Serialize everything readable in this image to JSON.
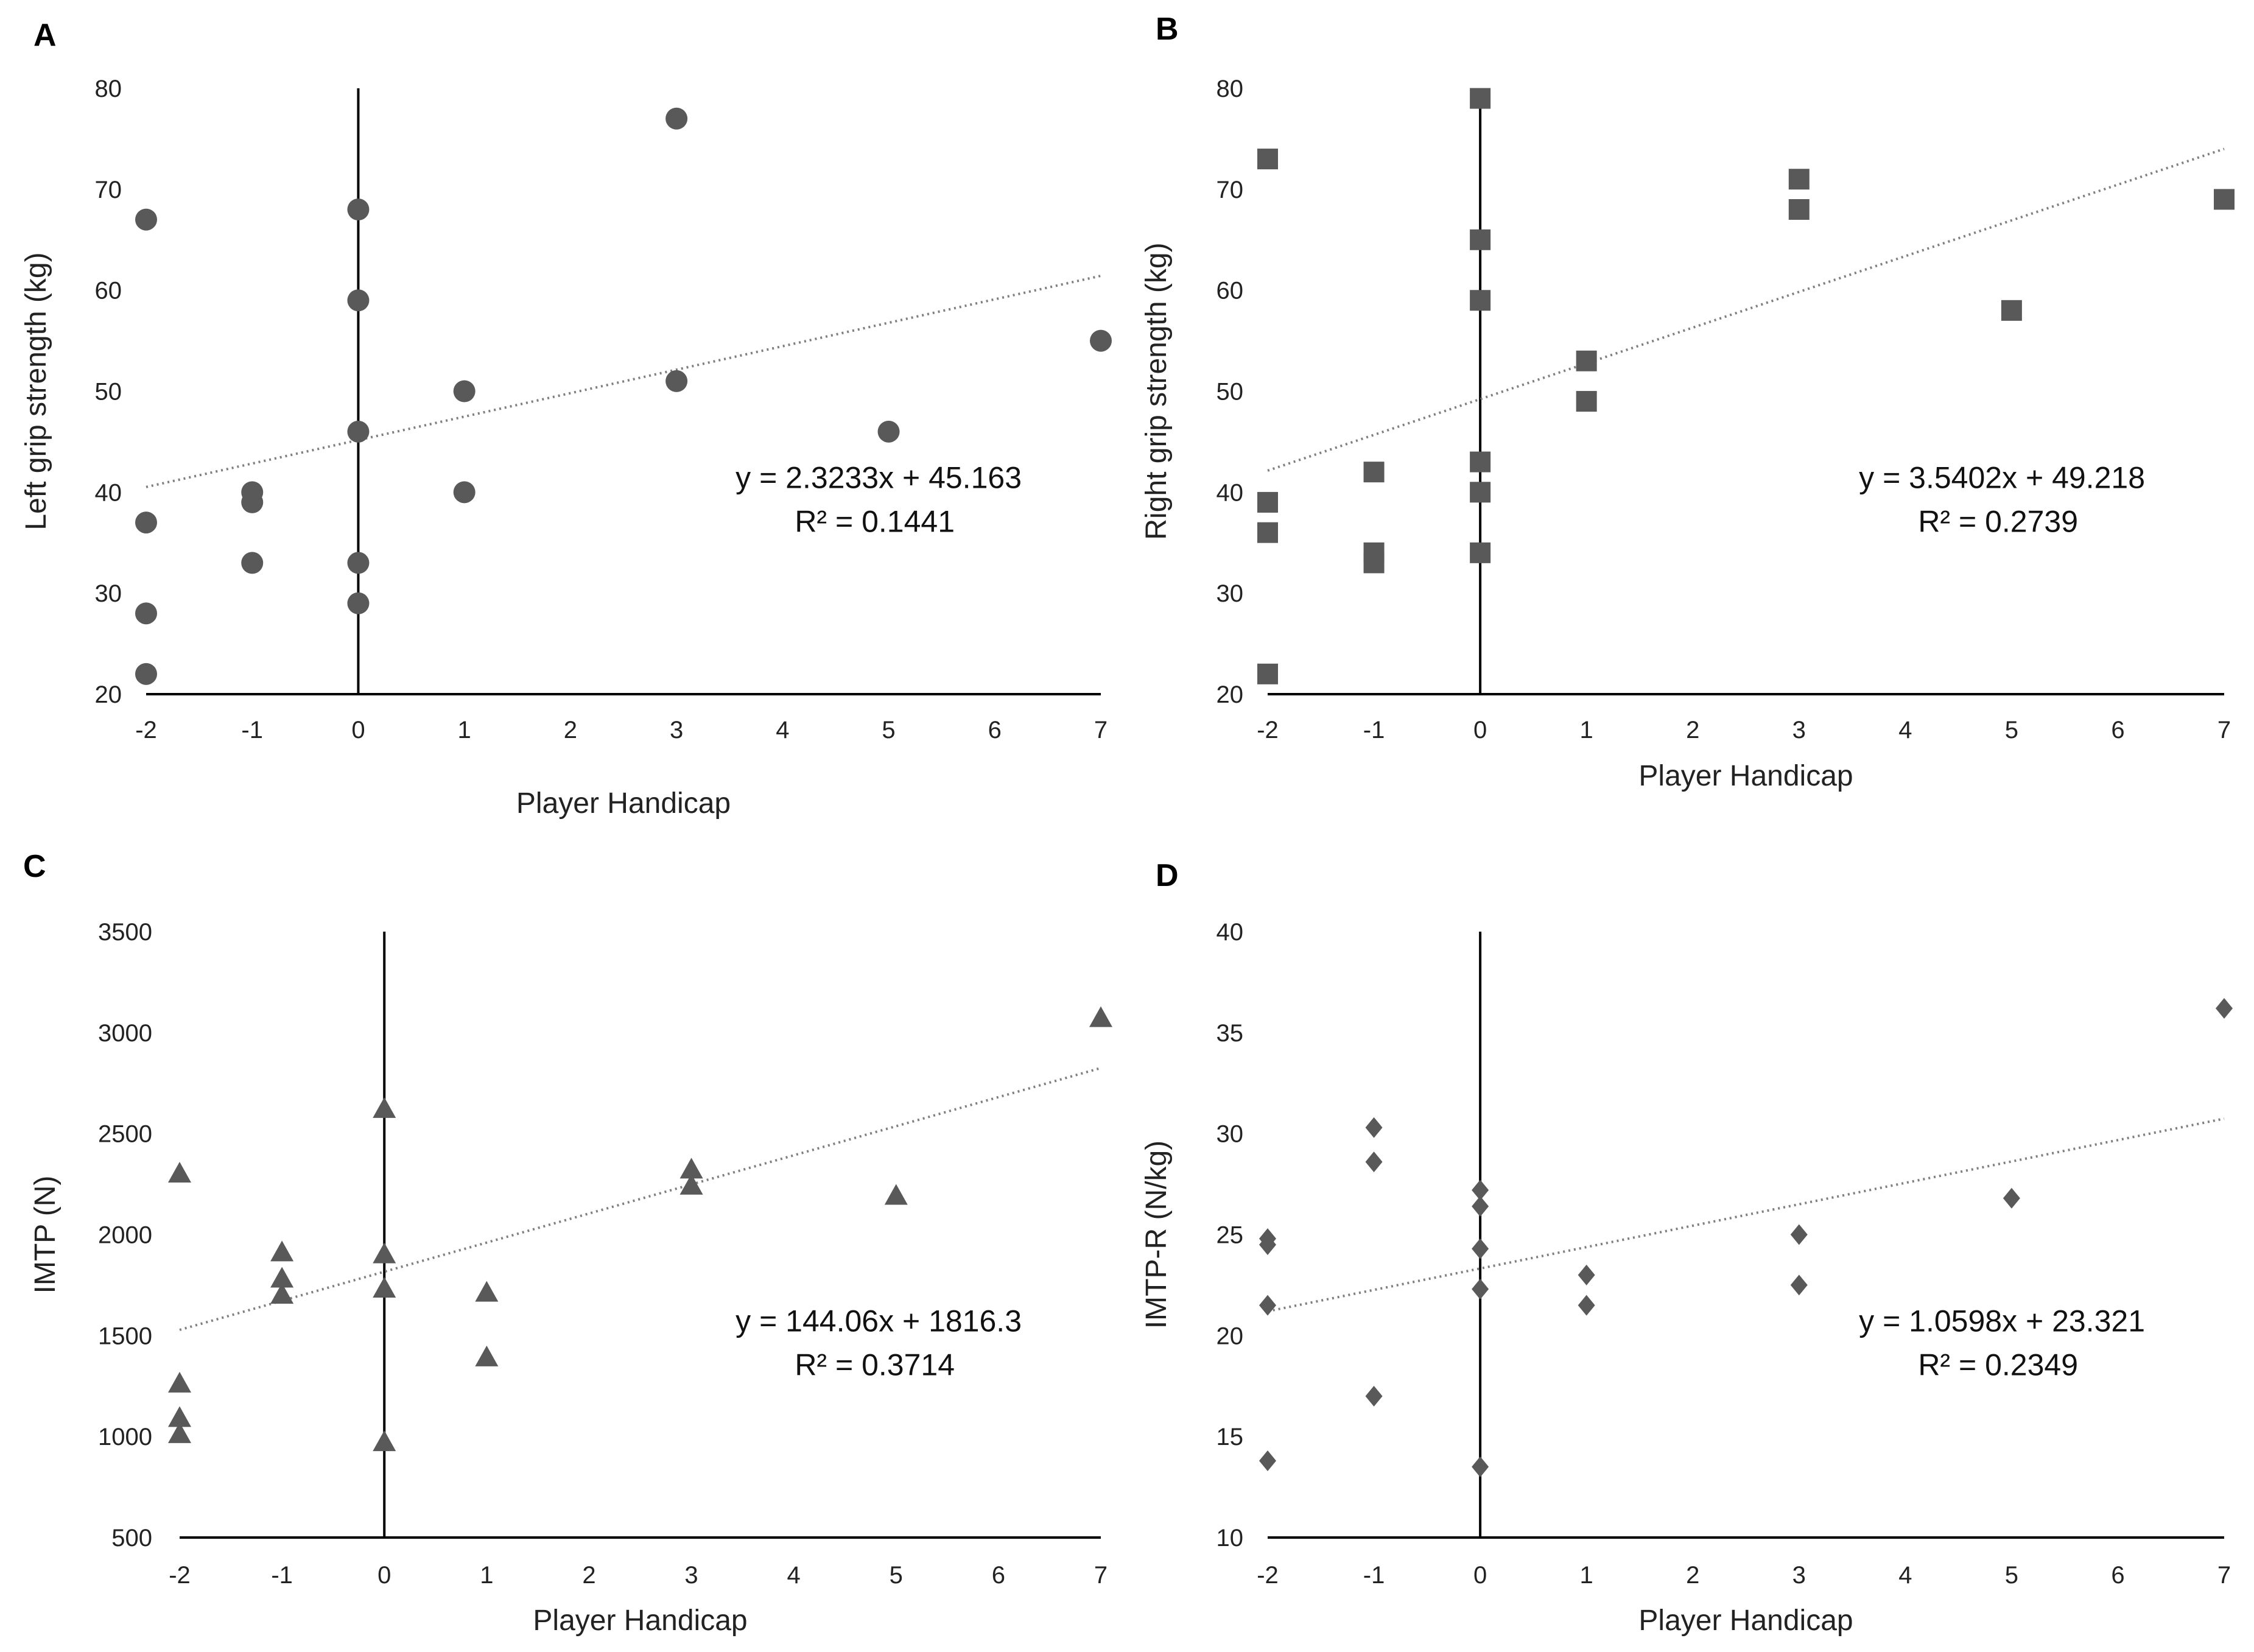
{
  "chart_data": [
    {
      "panel": "A",
      "type": "scatter",
      "marker": "circle",
      "xlabel": "Player Handicap",
      "ylabel": "Left grip strength (kg)",
      "xlim": [
        -2,
        7
      ],
      "ylim": [
        20,
        80
      ],
      "xticks": [
        -2,
        -1,
        0,
        1,
        2,
        3,
        4,
        5,
        6,
        7
      ],
      "yticks": [
        20,
        30,
        40,
        50,
        60,
        70,
        80
      ],
      "points": [
        [
          -2,
          67
        ],
        [
          -2,
          37
        ],
        [
          -2,
          28
        ],
        [
          -2,
          22
        ],
        [
          -1,
          40
        ],
        [
          -1,
          39
        ],
        [
          -1,
          33
        ],
        [
          0,
          68
        ],
        [
          0,
          59
        ],
        [
          0,
          46
        ],
        [
          0,
          33
        ],
        [
          0,
          29
        ],
        [
          1,
          50
        ],
        [
          1,
          40
        ],
        [
          3,
          77
        ],
        [
          3,
          51
        ],
        [
          5,
          46
        ],
        [
          7,
          55
        ]
      ],
      "trendline": {
        "slope": 2.3233,
        "intercept": 45.163
      },
      "equation": "y = 2.3233x + 45.163",
      "r2": "R² = 0.1441"
    },
    {
      "panel": "B",
      "type": "scatter",
      "marker": "square",
      "xlabel": "Player Handicap",
      "ylabel": "Right grip strength (kg)",
      "xlim": [
        -2,
        7
      ],
      "ylim": [
        20,
        80
      ],
      "xticks": [
        -2,
        -1,
        0,
        1,
        2,
        3,
        4,
        5,
        6,
        7
      ],
      "yticks": [
        20,
        30,
        40,
        50,
        60,
        70,
        80
      ],
      "points": [
        [
          -2,
          73
        ],
        [
          -2,
          39
        ],
        [
          -2,
          36
        ],
        [
          -2,
          22
        ],
        [
          -1,
          42
        ],
        [
          -1,
          34
        ],
        [
          -1,
          33
        ],
        [
          0,
          79
        ],
        [
          0,
          65
        ],
        [
          0,
          59
        ],
        [
          0,
          43
        ],
        [
          0,
          40
        ],
        [
          0,
          34
        ],
        [
          1,
          53
        ],
        [
          1,
          49
        ],
        [
          3,
          71
        ],
        [
          3,
          68
        ],
        [
          5,
          58
        ],
        [
          7,
          69
        ]
      ],
      "trendline": {
        "slope": 3.5402,
        "intercept": 49.218
      },
      "equation": "y = 3.5402x + 49.218",
      "r2": "R² = 0.2739"
    },
    {
      "panel": "C",
      "type": "scatter",
      "marker": "triangle",
      "xlabel": "Player Handicap",
      "ylabel": "IMTP (N)",
      "xlim": [
        -2,
        7
      ],
      "ylim": [
        500,
        3500
      ],
      "xticks": [
        -2,
        -1,
        0,
        1,
        2,
        3,
        4,
        5,
        6,
        7
      ],
      "yticks": [
        500,
        1000,
        1500,
        2000,
        2500,
        3000,
        3500
      ],
      "points": [
        [
          -2,
          2300
        ],
        [
          -2,
          1260
        ],
        [
          -2,
          1090
        ],
        [
          -2,
          1010
        ],
        [
          -1,
          1910
        ],
        [
          -1,
          1780
        ],
        [
          -1,
          1700
        ],
        [
          0,
          2620
        ],
        [
          0,
          1900
        ],
        [
          0,
          1730
        ],
        [
          0,
          970
        ],
        [
          1,
          1710
        ],
        [
          1,
          1390
        ],
        [
          3,
          2320
        ],
        [
          3,
          2240
        ],
        [
          5,
          2190
        ],
        [
          7,
          3070
        ]
      ],
      "trendline": {
        "slope": 144.06,
        "intercept": 1816.3
      },
      "equation": "y = 144.06x + 1816.3",
      "r2": "R² = 0.3714"
    },
    {
      "panel": "D",
      "type": "scatter",
      "marker": "diamond",
      "xlabel": "Player Handicap",
      "ylabel": "IMTP-R (N/kg)",
      "xlim": [
        -2,
        7
      ],
      "ylim": [
        10,
        40
      ],
      "xticks": [
        -2,
        -1,
        0,
        1,
        2,
        3,
        4,
        5,
        6,
        7
      ],
      "yticks": [
        10,
        15,
        20,
        25,
        30,
        35,
        40
      ],
      "points": [
        [
          -2,
          24.8
        ],
        [
          -2,
          24.5
        ],
        [
          -2,
          21.5
        ],
        [
          -2,
          13.8
        ],
        [
          -1,
          30.3
        ],
        [
          -1,
          28.6
        ],
        [
          -1,
          17.0
        ],
        [
          0,
          27.2
        ],
        [
          0,
          26.4
        ],
        [
          0,
          24.3
        ],
        [
          0,
          22.3
        ],
        [
          0,
          13.5
        ],
        [
          1,
          23.0
        ],
        [
          1,
          21.5
        ],
        [
          3,
          25.0
        ],
        [
          3,
          22.5
        ],
        [
          5,
          26.8
        ],
        [
          7,
          36.2
        ]
      ],
      "trendline": {
        "slope": 1.0598,
        "intercept": 23.321
      },
      "equation": "y = 1.0598x + 23.321",
      "r2": "R² = 0.2349"
    }
  ],
  "colors": {
    "marker": "#595959",
    "trendline": "#7f7f7f",
    "axis": "#000000"
  }
}
